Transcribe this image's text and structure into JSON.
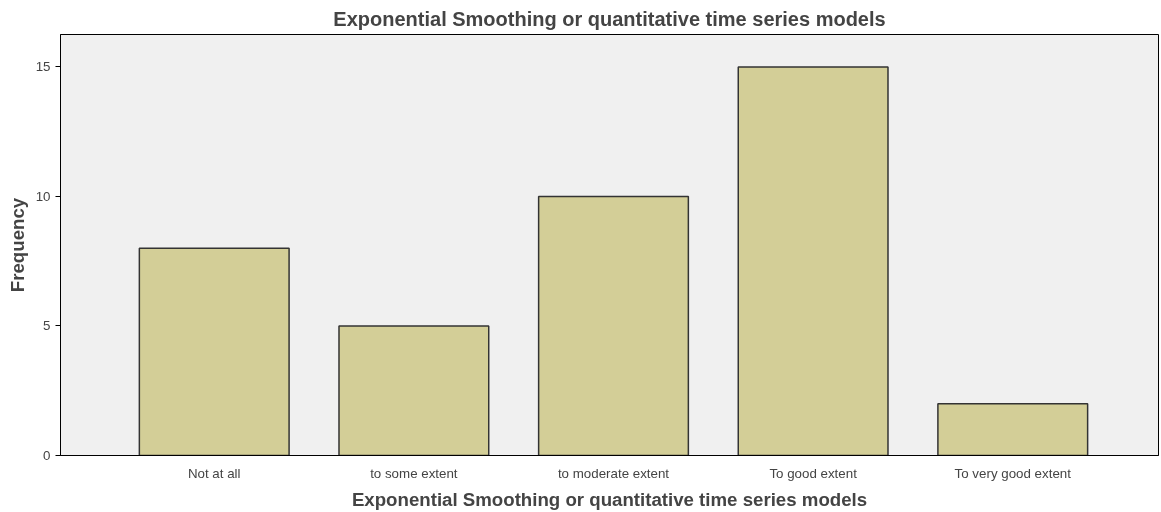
{
  "chart_data": {
    "type": "bar",
    "title": "Exponential Smoothing or quantitative time series models",
    "xlabel": "Exponential Smoothing or quantitative time series models",
    "ylabel": "Frequency",
    "categories": [
      "Not at all",
      "to some extent",
      "to moderate extent",
      "To good extent",
      "To very good extent"
    ],
    "values": [
      8,
      5,
      10,
      15,
      2
    ],
    "color": "#d3ce97",
    "ylim": [
      0,
      16.25
    ],
    "yticks": [
      0,
      5,
      10,
      15
    ],
    "grid": false
  }
}
